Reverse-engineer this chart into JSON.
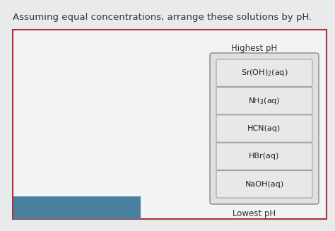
{
  "title": "Assuming equal concentrations, arrange these solutions by pH.",
  "title_fontsize": 9.5,
  "title_color": "#333333",
  "page_bg": "#e8eaeb",
  "inner_bg": "#f2f3f4",
  "border_color": "#aa3333",
  "highest_ph_label": "Highest pH",
  "lowest_ph_label": "Lowest pH",
  "label_fontsize": 8.5,
  "solutions": [
    "Sr(OH)$_2$(aq)",
    "NH$_3$(aq)",
    "HCN(aq)",
    "HBr(aq)",
    "NaOH(aq)"
  ],
  "box_facecolor": "#e8e8e8",
  "box_edgecolor": "#999999",
  "solution_fontsize": 8.0,
  "solution_color": "#222222",
  "outer_box_edgecolor": "#888888",
  "outer_box_facecolor": "#e0e0e0",
  "blue_bar_color": "#4a7fa0"
}
